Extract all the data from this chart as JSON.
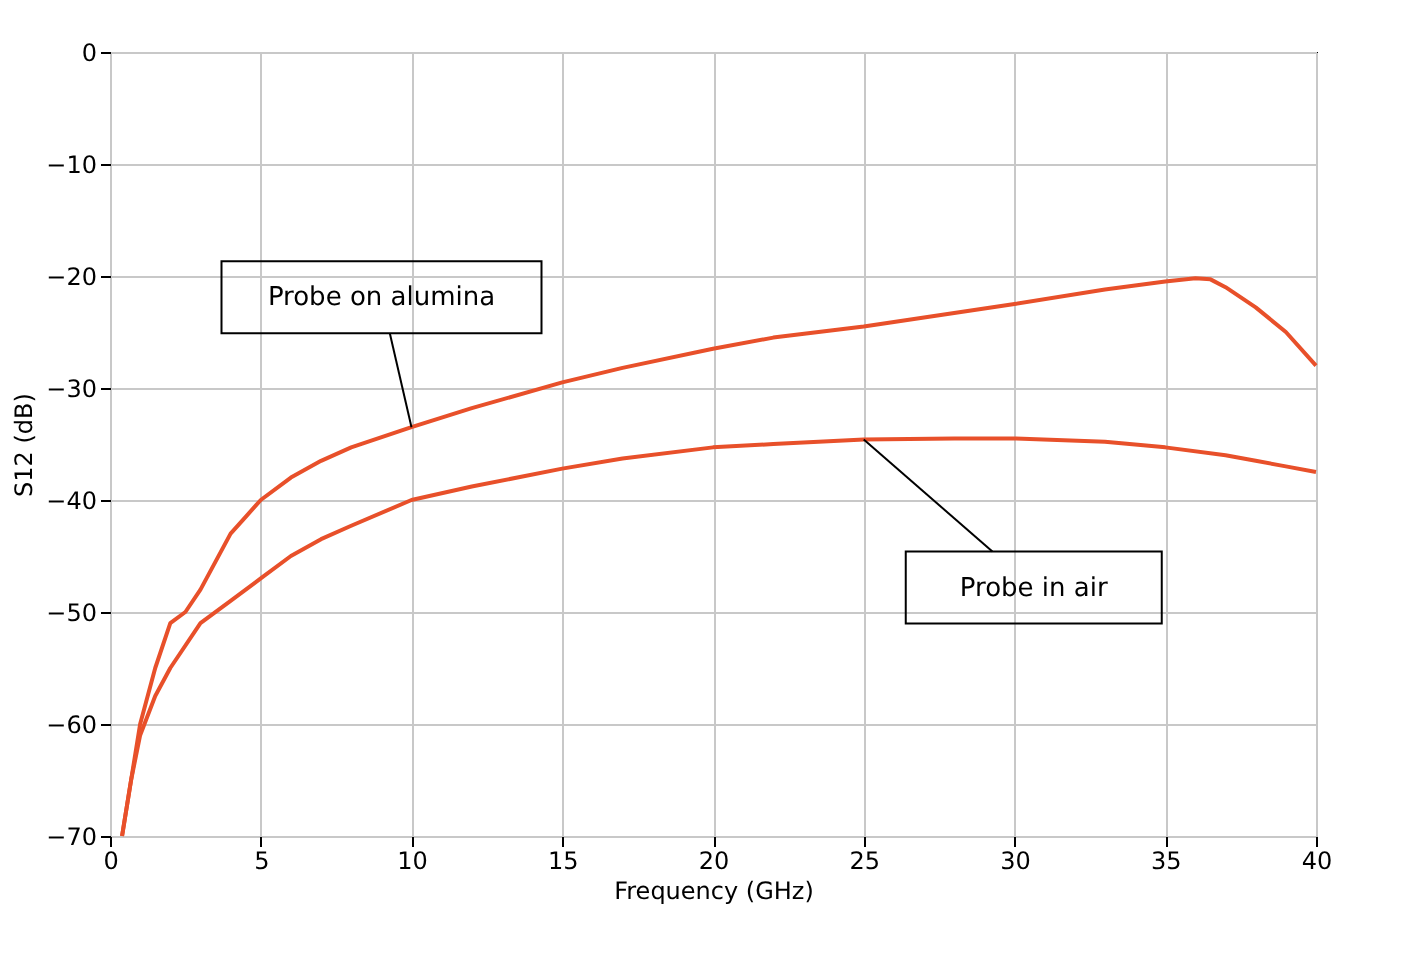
{
  "chart_data": {
    "type": "line",
    "xlabel": "Frequency (GHz)",
    "ylabel": "S12 (dB)",
    "xlim": [
      0,
      40
    ],
    "xticks": [
      0,
      5,
      10,
      15,
      20,
      25,
      30,
      35,
      40
    ],
    "ylim": [
      -70,
      0
    ],
    "yticks": [
      -70,
      -60,
      -50,
      -40,
      -30,
      -20,
      -10,
      0
    ],
    "grid": true,
    "marker": "none",
    "line_style": "solid",
    "series": [
      {
        "color": "#e8502a",
        "x": [
          0.4,
          0.7,
          1,
          1.5,
          2,
          2.5,
          3,
          3.5,
          4,
          4.5,
          5,
          6,
          7,
          8,
          10,
          12,
          15,
          17,
          20,
          22,
          25,
          28,
          30,
          33,
          35,
          36,
          36.5,
          37,
          38,
          39,
          40
        ],
        "values": [
          -70,
          -65,
          -60,
          -55,
          -51,
          -50,
          -48,
          -45.5,
          -43,
          -41.5,
          -40,
          -38,
          -36.5,
          -35.3,
          -33.5,
          -31.8,
          -29.5,
          -28.2,
          -26.5,
          -25.5,
          -24.5,
          -23.3,
          -22.5,
          -21.2,
          -20.5,
          -20.2,
          -20.3,
          -21,
          -22.8,
          -25,
          -28
        ]
      },
      {
        "color": "#e8502a",
        "x": [
          0.4,
          0.7,
          1,
          1.5,
          2,
          3,
          4,
          5,
          6,
          7,
          8,
          10,
          12,
          15,
          17,
          20,
          22,
          25,
          28,
          30,
          33,
          35,
          37,
          38,
          39,
          40
        ],
        "values": [
          -70,
          -65,
          -61,
          -57.5,
          -55,
          -51,
          -49,
          -47,
          -45,
          -43.5,
          -42.3,
          -40,
          -38.8,
          -37.2,
          -36.3,
          -35.3,
          -35,
          -34.6,
          -34.5,
          -34.5,
          -34.8,
          -35.3,
          -36,
          -36.5,
          -37,
          -37.5
        ]
      }
    ],
    "annotations": [
      {
        "text": "Probe on alumina",
        "x": 10,
        "y": -33.5
      },
      {
        "text": "Probe in air",
        "x": 25,
        "y": -34.6
      }
    ]
  }
}
